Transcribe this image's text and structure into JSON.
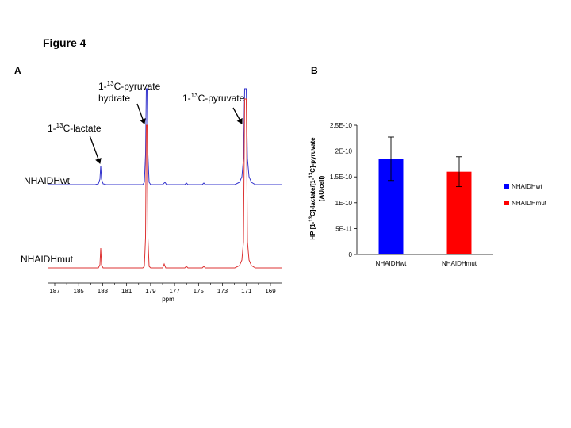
{
  "figure": {
    "title": "Figure 4"
  },
  "panel_a": {
    "label": "A",
    "annotations": {
      "lactate": {
        "prefix": "1-",
        "sup": "13",
        "suffix": "C-lactate"
      },
      "pyruvate_hydrate": {
        "prefix": "1-",
        "sup": "13",
        "suffix": "C-pyruvate",
        "line2": "hydrate"
      },
      "pyruvate": {
        "prefix": "1-",
        "sup": "13",
        "suffix": "C-pyruvate"
      }
    },
    "traces": [
      {
        "name": "NHAIDHwt",
        "color": "#3333cc"
      },
      {
        "name": "NHAIDHmut",
        "color": "#dd3333"
      }
    ],
    "xlabel": "ppm",
    "ticks": [
      "187",
      "185",
      "183",
      "181",
      "179",
      "177",
      "175",
      "173",
      "171",
      "169"
    ]
  },
  "panel_b": {
    "label": "B"
  },
  "chart_data": {
    "type": "bar",
    "categories": [
      "NHAIDHwt",
      "NHAIDHmut"
    ],
    "values": [
      1.85e-10,
      1.6e-10
    ],
    "errors": [
      4.2e-11,
      2.9e-11
    ],
    "colors": [
      "#0000ff",
      "#ff0000"
    ],
    "ylim": [
      0,
      2.5e-10
    ],
    "ytick_values": [
      0,
      5e-11,
      1e-10,
      1.5e-10,
      2e-10,
      2.5e-10
    ],
    "ytick_labels": [
      "0",
      "5E-11",
      "1E-10",
      "1.5E-10",
      "2E-10",
      "2.5E-10"
    ],
    "ylabel_line1": {
      "a": "HP [1-",
      "b": "13",
      "c": "C]-lactate/[1-",
      "d": "13",
      "e": "C]-pyruvate"
    },
    "ylabel_line2": "(AU/cell)",
    "legend": [
      "NHAIDHwt",
      "NHAIDHmut"
    ]
  }
}
